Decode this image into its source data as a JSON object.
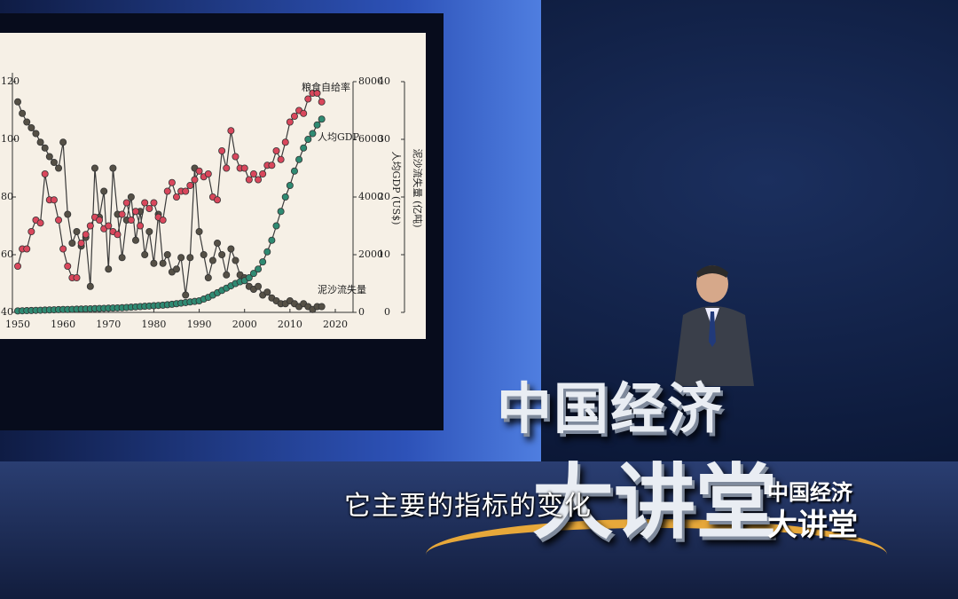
{
  "chart_data": {
    "type": "line",
    "x": [
      1950,
      1951,
      1952,
      1953,
      1954,
      1955,
      1956,
      1957,
      1958,
      1959,
      1960,
      1961,
      1962,
      1963,
      1964,
      1965,
      1966,
      1967,
      1968,
      1969,
      1970,
      1971,
      1972,
      1973,
      1974,
      1975,
      1976,
      1977,
      1978,
      1979,
      1980,
      1981,
      1982,
      1983,
      1984,
      1985,
      1986,
      1987,
      1988,
      1989,
      1990,
      1991,
      1992,
      1993,
      1994,
      1995,
      1996,
      1997,
      1998,
      1999,
      2000,
      2001,
      2002,
      2003,
      2004,
      2005,
      2006,
      2007,
      2008,
      2009,
      2010,
      2011,
      2012,
      2013,
      2014,
      2015,
      2016,
      2017
    ],
    "series": [
      {
        "name": "泥沙流失量",
        "color": "#555046",
        "axis": "y3",
        "values": [
          36.5,
          34.5,
          33,
          32,
          31,
          29.5,
          28.5,
          27,
          26,
          25,
          29.5,
          17,
          12,
          14,
          11.5,
          13,
          4.5,
          25,
          16.5,
          21,
          7.5,
          25,
          17,
          9.5,
          16,
          20,
          12.5,
          17.5,
          10,
          14,
          8.5,
          17,
          8.5,
          10,
          7,
          7.5,
          9.5,
          3,
          9.5,
          25,
          14,
          10,
          6,
          9,
          12,
          10,
          6.5,
          11,
          9,
          6.5,
          6,
          4.5,
          4,
          4.5,
          3,
          3.5,
          2.5,
          2,
          1.5,
          1.5,
          2,
          1.5,
          1,
          1.5,
          1,
          0.5,
          1,
          1
        ]
      },
      {
        "name": "粮食自给率",
        "color": "#d9475c",
        "axis": "y",
        "values": [
          56,
          62,
          62,
          68,
          72,
          71,
          88,
          79,
          79,
          72,
          62,
          56,
          52,
          52,
          64,
          67,
          70,
          73,
          72,
          69,
          70,
          68,
          67,
          74,
          78,
          72,
          75,
          70,
          78,
          76,
          78,
          73,
          72,
          82,
          85,
          80,
          82,
          82,
          84,
          86,
          89,
          87,
          88,
          80,
          79,
          96,
          90,
          103,
          94,
          90,
          90,
          86,
          88,
          86,
          88,
          91,
          91,
          96,
          93,
          99,
          106,
          108,
          110,
          109,
          114,
          116,
          116,
          113
        ]
      },
      {
        "name": "人均GDP",
        "color": "#2f8a72",
        "axis": "y2",
        "values": [
          50,
          55,
          60,
          65,
          70,
          75,
          80,
          85,
          90,
          95,
          100,
          100,
          105,
          110,
          115,
          120,
          125,
          130,
          135,
          140,
          145,
          150,
          155,
          160,
          170,
          180,
          190,
          200,
          210,
          220,
          230,
          240,
          250,
          265,
          280,
          300,
          320,
          340,
          360,
          380,
          400,
          460,
          520,
          600,
          680,
          760,
          840,
          920,
          1000,
          1060,
          1100,
          1200,
          1350,
          1500,
          1750,
          2100,
          2500,
          3000,
          3500,
          4000,
          4400,
          4900,
          5300,
          5700,
          6000,
          6200,
          6500,
          6700
        ]
      }
    ],
    "xlim": [
      1950,
      2020
    ],
    "xticks": [
      1950,
      1960,
      1970,
      1980,
      1990,
      2000,
      2010,
      2020
    ],
    "ylim": [
      40,
      120
    ],
    "yticks": [
      40,
      60,
      80,
      100,
      120
    ],
    "y2lim": [
      0,
      8000
    ],
    "y2ticks": [
      0,
      2000,
      4000,
      6000,
      8000
    ],
    "y2_label": "人均GDP (US$)",
    "y3lim": [
      0,
      40
    ],
    "y3ticks": [
      0,
      10,
      20,
      30,
      40
    ],
    "y3_label": "泥沙流失量 (亿吨)"
  },
  "logo": {
    "line1": "中国经济",
    "line2": "大讲堂"
  },
  "corner_logo": {
    "line1": "中国经济",
    "line2": "大讲堂"
  },
  "subtitle": "它主要的指标的变化"
}
